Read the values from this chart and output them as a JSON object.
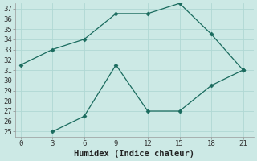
{
  "xlabel": "Humidex (Indice chaleur)",
  "line1_x": [
    0,
    3,
    6,
    9,
    12,
    15,
    18,
    21
  ],
  "line1_y": [
    31.5,
    33.0,
    34.0,
    36.5,
    36.5,
    37.5,
    34.5,
    31.0
  ],
  "line2_x": [
    3,
    6,
    9,
    12,
    15,
    18,
    21
  ],
  "line2_y": [
    25.0,
    26.5,
    31.5,
    27.0,
    27.0,
    29.5,
    31.0
  ],
  "line_color": "#1a6b5e",
  "bg_color": "#cce9e5",
  "grid_color": "#b0d8d4",
  "marker": "D",
  "marker_size": 2.5,
  "xlim": [
    -0.5,
    22
  ],
  "ylim": [
    24.5,
    37.5
  ],
  "xticks": [
    0,
    3,
    6,
    9,
    12,
    15,
    18,
    21
  ],
  "yticks": [
    25,
    26,
    27,
    28,
    29,
    30,
    31,
    32,
    33,
    34,
    35,
    36,
    37
  ],
  "tick_fontsize": 6.5,
  "label_fontsize": 7.5
}
